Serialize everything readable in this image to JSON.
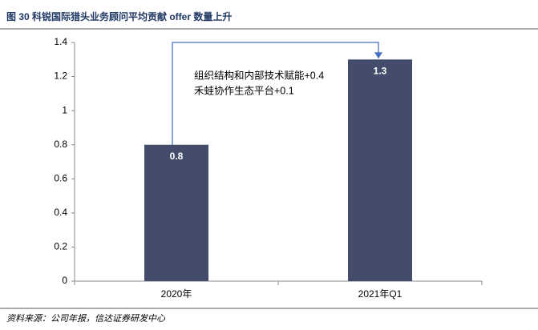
{
  "chart_data": {
    "type": "bar",
    "title": "图 30  科锐国际猎头业务顾问平均贡献 offer 数量上升",
    "categories": [
      "2020年",
      "2021年Q1"
    ],
    "values": [
      0.8,
      1.3
    ],
    "color": "#434d6b",
    "ylim": [
      0,
      1.4
    ],
    "yticks": [
      0,
      0.2,
      0.4,
      0.6,
      0.8,
      1,
      1.2,
      1.4
    ],
    "grid": false,
    "annotations": [
      "组织结构和内部技术赋能+0.4",
      "禾蛙协作生态平台+0.1"
    ],
    "source": "资料来源：公司年报，信达证券研发中心"
  }
}
